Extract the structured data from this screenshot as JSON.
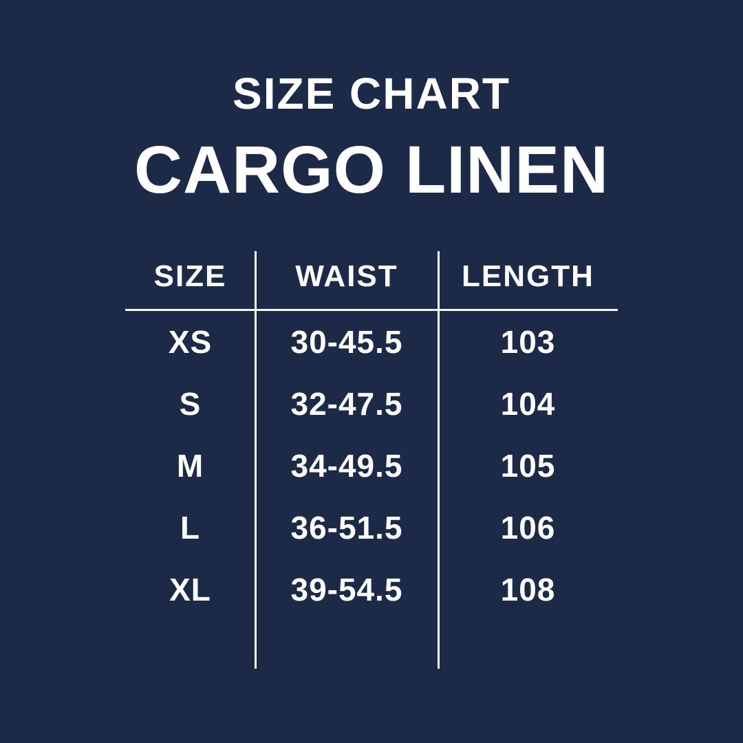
{
  "page": {
    "background_color": "#1d2a47",
    "text_color": "#ffffff",
    "line_color": "#f5f7fa"
  },
  "header": {
    "subtitle": "SIZE CHART",
    "title": "CARGO LINEN"
  },
  "chart_data": {
    "type": "table",
    "title": "SIZE CHART",
    "subtitle_product": "CARGO LINEN",
    "columns": [
      "SIZE",
      "WAIST",
      "LENGTH"
    ],
    "rows": [
      {
        "size": "XS",
        "waist": "30-45.5",
        "length": "103"
      },
      {
        "size": "S",
        "waist": "32-47.5",
        "length": "104"
      },
      {
        "size": "M",
        "waist": "34-49.5",
        "length": "105"
      },
      {
        "size": "L",
        "waist": "36-51.5",
        "length": "106"
      },
      {
        "size": "XL",
        "waist": "39-54.5",
        "length": "108"
      }
    ]
  }
}
